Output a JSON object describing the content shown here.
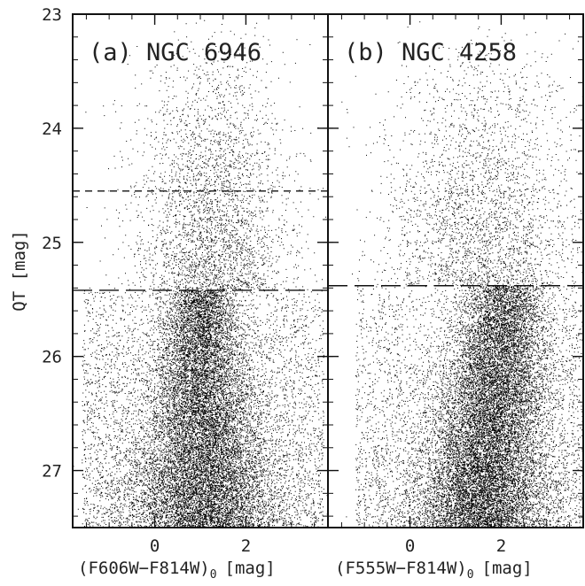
{
  "chart_data": [
    {
      "type": "scatter",
      "panel_label": "(a) NGC 6946",
      "xlabel": "(F606W−F814W)",
      "xlabel_subscript": "0",
      "xlabel_unit": "[mag]",
      "ylabel": "QT [mag]",
      "xlim": [
        -1.8,
        3.8
      ],
      "ylim": [
        27.5,
        23.0
      ],
      "x_ticks": [
        0,
        2
      ],
      "y_ticks": [
        23,
        24,
        25,
        26,
        27
      ],
      "y_inverted": true,
      "reference_lines": [
        {
          "y": 24.55,
          "style": "short-dash"
        },
        {
          "y": 25.42,
          "style": "long-dash"
        }
      ],
      "point_color": "#000000",
      "grid": false
    },
    {
      "type": "scatter",
      "panel_label": "(b) NGC 4258",
      "xlabel": "(F555W−F814W)",
      "xlabel_subscript": "0",
      "xlabel_unit": "[mag]",
      "ylabel": "",
      "xlim": [
        -1.8,
        3.8
      ],
      "ylim": [
        27.5,
        23.0
      ],
      "x_ticks": [
        0,
        2
      ],
      "y_ticks": [
        23,
        24,
        25,
        26,
        27
      ],
      "y_inverted": true,
      "reference_lines": [
        {
          "y": 25.38,
          "style": "long-dash"
        }
      ],
      "point_color": "#000000",
      "grid": false
    }
  ]
}
